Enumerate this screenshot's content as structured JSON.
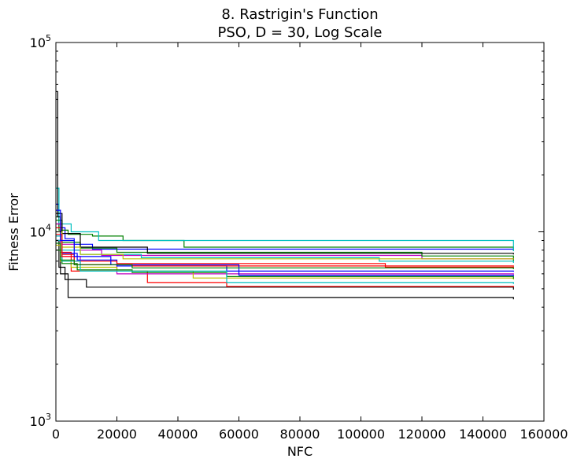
{
  "chart_data": {
    "type": "line",
    "title": "8.   Rastrigin's Function",
    "subtitle": "PSO, D = 30, Log Scale",
    "xlabel": "NFC",
    "ylabel": "Fitness Error",
    "xlim": [
      0,
      160000
    ],
    "ylim": [
      1000,
      100000
    ],
    "yscale": "log",
    "grid": false,
    "legend": "none",
    "x_ticks": [
      "0",
      "20000",
      "40000",
      "60000",
      "80000",
      "100000",
      "120000",
      "140000",
      "160000"
    ],
    "x_tick_values": [
      0,
      20000,
      40000,
      60000,
      80000,
      100000,
      120000,
      140000,
      160000
    ],
    "y_ticks": [
      {
        "value": 1000,
        "base": "10",
        "exp": "3"
      },
      {
        "value": 10000,
        "base": "10",
        "exp": "4"
      },
      {
        "value": 100000,
        "base": "10",
        "exp": "5"
      }
    ],
    "series": [
      {
        "color": "#0000ff",
        "x": [
          0,
          1000,
          3000,
          6000,
          12000,
          150000
        ],
        "y": [
          14000,
          10500,
          9200,
          8600,
          8100,
          8050
        ]
      },
      {
        "color": "#008000",
        "x": [
          0,
          1000,
          4000,
          12000,
          22000,
          42000,
          150000
        ],
        "y": [
          12000,
          10200,
          9700,
          9500,
          9000,
          8300,
          7950
        ]
      },
      {
        "color": "#00bfbf",
        "x": [
          0,
          1000,
          5000,
          14000,
          150000
        ],
        "y": [
          17000,
          11000,
          10000,
          9000,
          7900
        ]
      },
      {
        "color": "#000000",
        "x": [
          0,
          600,
          1500,
          4000,
          150000
        ],
        "y": [
          55000,
          12000,
          6000,
          4500,
          4400
        ]
      },
      {
        "color": "#000000",
        "x": [
          0,
          1000,
          3000,
          10000,
          150000
        ],
        "y": [
          9000,
          6500,
          5600,
          5100,
          4950
        ]
      },
      {
        "color": "#ff0000",
        "x": [
          0,
          1500,
          5000,
          30000,
          56000,
          150000
        ],
        "y": [
          11000,
          7800,
          6200,
          5400,
          5150,
          5100
        ]
      },
      {
        "color": "#bf00bf",
        "x": [
          0,
          1500,
          8000,
          20000,
          150000
        ],
        "y": [
          9500,
          7400,
          6700,
          6000,
          5950
        ]
      },
      {
        "color": "#bfbf00",
        "x": [
          0,
          1500,
          5000,
          20000,
          45000,
          150000
        ],
        "y": [
          8500,
          7000,
          6500,
          6200,
          5700,
          5600
        ]
      },
      {
        "color": "#008000",
        "x": [
          0,
          2000,
          7000,
          25000,
          56000,
          150000
        ],
        "y": [
          8000,
          6800,
          6300,
          6100,
          5800,
          5650
        ]
      },
      {
        "color": "#0000ff",
        "x": [
          0,
          2000,
          7000,
          20000,
          56000,
          150000
        ],
        "y": [
          9000,
          7700,
          7100,
          6600,
          6200,
          6150
        ]
      },
      {
        "color": "#ff0000",
        "x": [
          0,
          2000,
          6000,
          20000,
          108000,
          150000
        ],
        "y": [
          10500,
          7600,
          7000,
          6800,
          6500,
          6400
        ]
      },
      {
        "color": "#bf00bf",
        "x": [
          0,
          2000,
          6000,
          15000,
          120000,
          150000
        ],
        "y": [
          11000,
          8600,
          8000,
          7500,
          7200,
          7150
        ]
      },
      {
        "color": "#008000",
        "x": [
          0,
          2000,
          8000,
          20000,
          120000,
          150000
        ],
        "y": [
          11500,
          8800,
          8200,
          7800,
          7450,
          7000
        ]
      },
      {
        "color": "#00bfbf",
        "x": [
          0,
          2000,
          8000,
          28000,
          106000,
          150000
        ],
        "y": [
          9500,
          8000,
          7600,
          7300,
          7000,
          6850
        ]
      },
      {
        "color": "#000000",
        "x": [
          0,
          2000,
          8000,
          30000,
          150000
        ],
        "y": [
          12500,
          9800,
          8300,
          7700,
          7600
        ]
      },
      {
        "color": "#bfbf00",
        "x": [
          0,
          2000,
          8000,
          22000,
          150000
        ],
        "y": [
          10000,
          8300,
          7600,
          7200,
          7150
        ]
      },
      {
        "color": "#00bfbf",
        "x": [
          0,
          2000,
          8000,
          56000,
          150000
        ],
        "y": [
          9000,
          7000,
          6200,
          5400,
          5300
        ]
      },
      {
        "color": "#ff0000",
        "x": [
          0,
          2000,
          6000,
          25000,
          150000
        ],
        "y": [
          9700,
          7400,
          6700,
          6600,
          6550
        ]
      },
      {
        "color": "#0000ff",
        "x": [
          0,
          1500,
          6000,
          18000,
          60000,
          150000
        ],
        "y": [
          13000,
          9000,
          7400,
          6700,
          5900,
          5850
        ]
      },
      {
        "color": "#008000",
        "x": [
          0,
          1500,
          6000,
          25000,
          150000
        ],
        "y": [
          8700,
          7100,
          6700,
          6450,
          6350
        ]
      }
    ]
  }
}
